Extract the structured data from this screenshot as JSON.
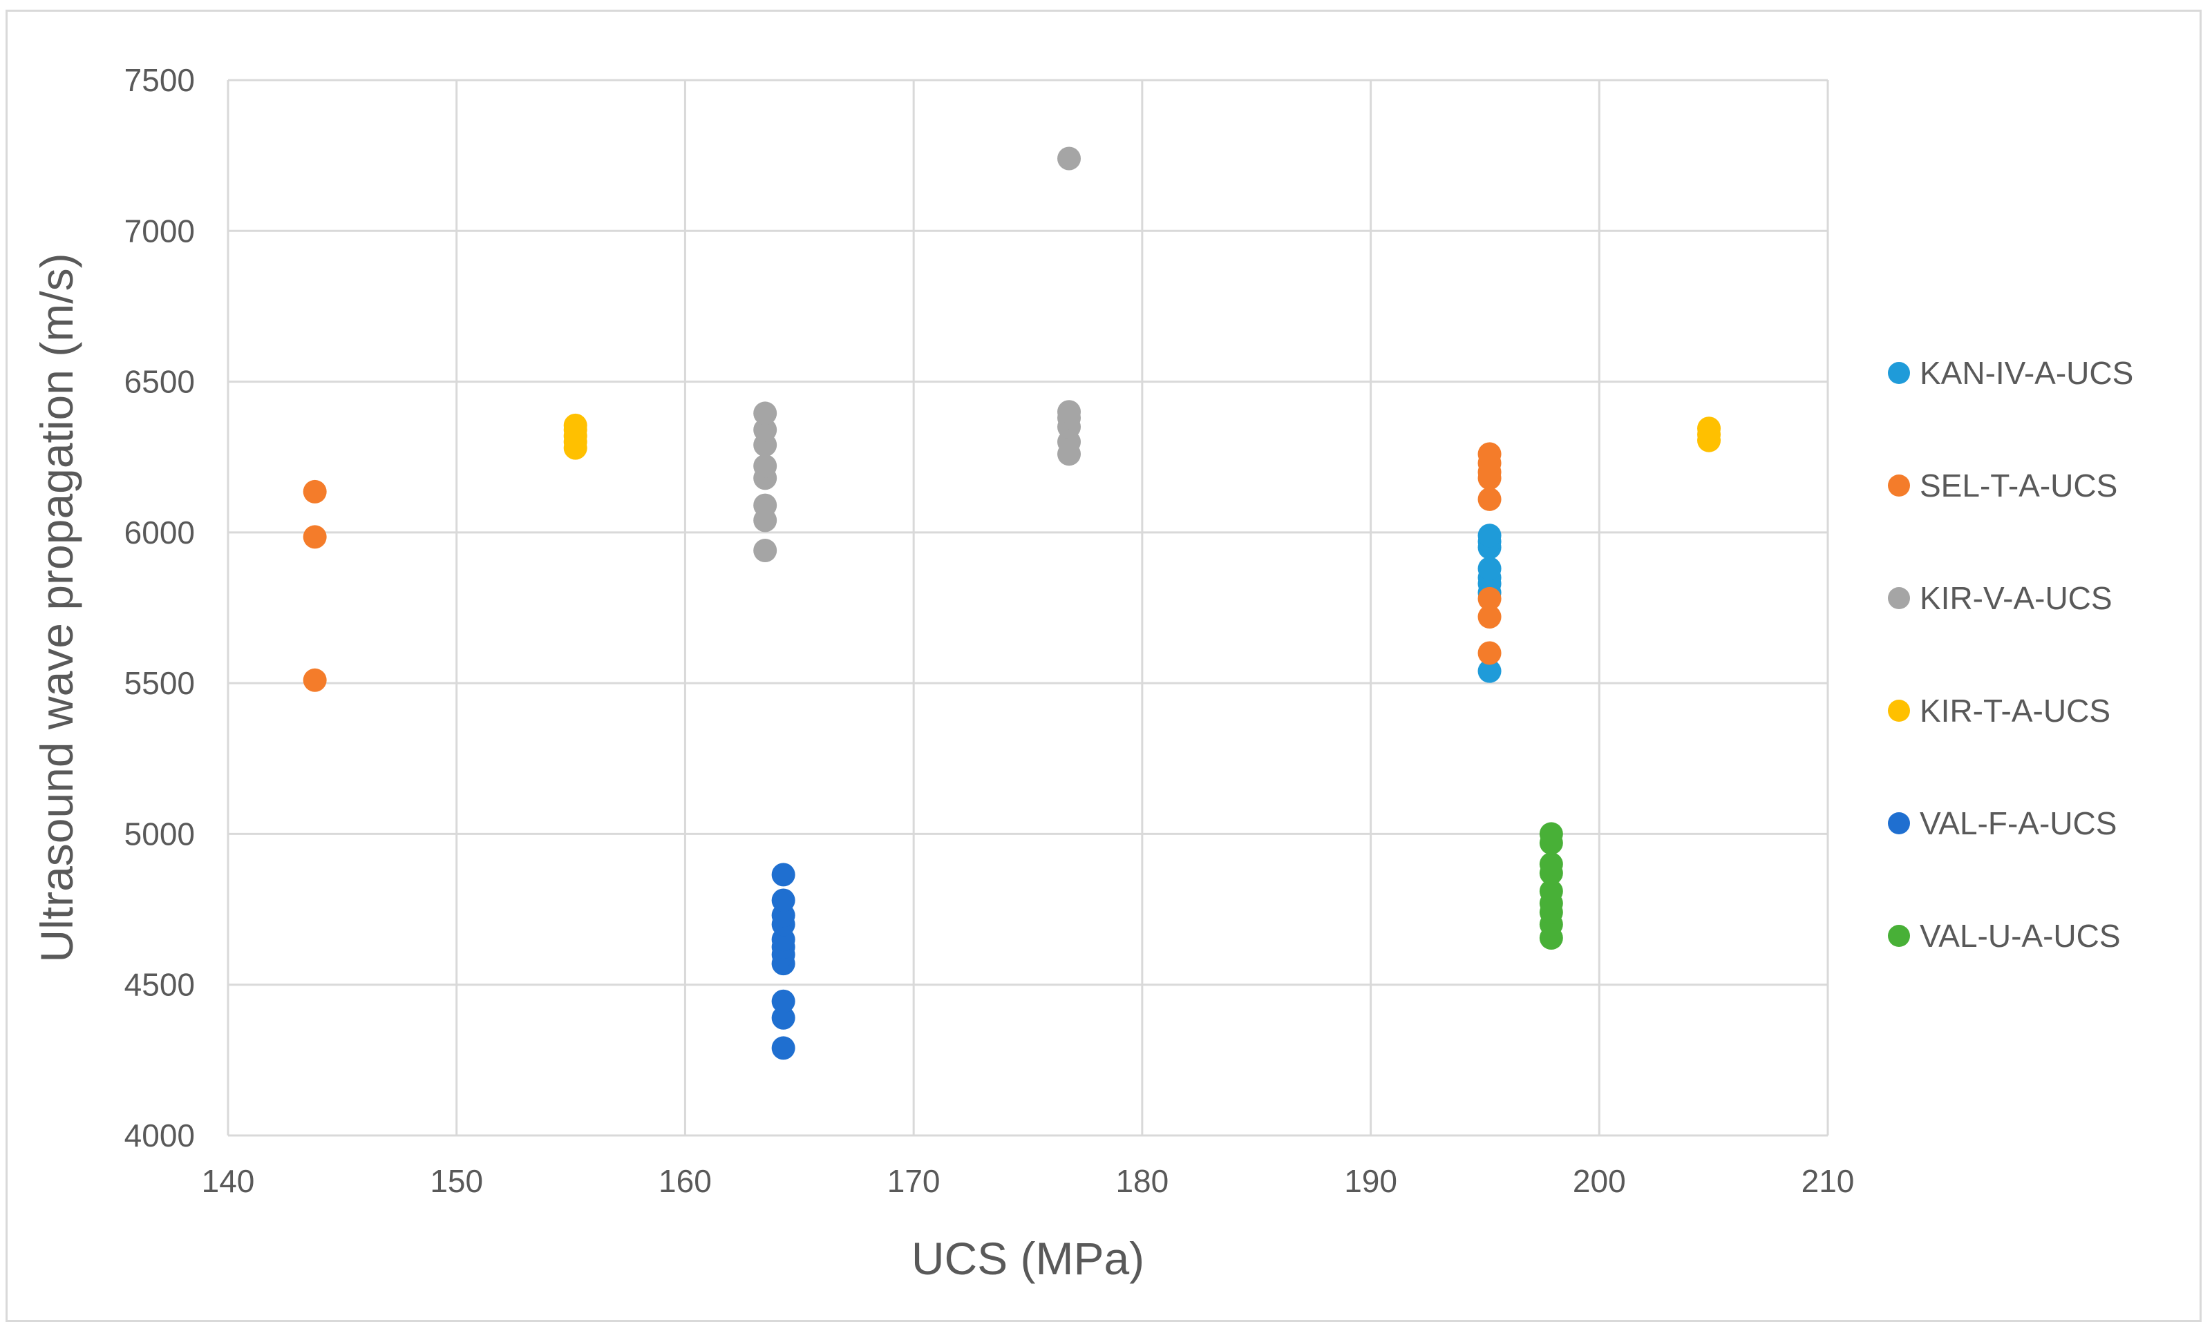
{
  "chart_data": {
    "type": "scatter",
    "title": "",
    "xlabel": "UCS (MPa)",
    "ylabel": "Ultrasound wave propagation (m/s)",
    "xlim": [
      140,
      210
    ],
    "ylim": [
      4000,
      7500
    ],
    "x_ticks": [
      "140",
      "150",
      "160",
      "170",
      "180",
      "190",
      "200",
      "210"
    ],
    "y_ticks": [
      "4000",
      "4500",
      "5000",
      "5500",
      "6000",
      "6500",
      "7000",
      "7500"
    ],
    "grid": true,
    "legend_position": "right",
    "series": [
      {
        "name": "KAN-IV-A-UCS",
        "color": "#1f9bd9",
        "points": [
          [
            195.2,
            5540
          ],
          [
            195.2,
            5800
          ],
          [
            195.2,
            5830
          ],
          [
            195.2,
            5850
          ],
          [
            195.2,
            5880
          ],
          [
            195.2,
            5950
          ],
          [
            195.2,
            5970
          ],
          [
            195.2,
            5990
          ]
        ]
      },
      {
        "name": "SEL-T-A-UCS",
        "color": "#f47c2a",
        "points": [
          [
            143.8,
            5510
          ],
          [
            143.8,
            5985
          ],
          [
            143.8,
            6135
          ],
          [
            195.2,
            5600
          ],
          [
            195.2,
            5720
          ],
          [
            195.2,
            5780
          ],
          [
            195.2,
            6110
          ],
          [
            195.2,
            6180
          ],
          [
            195.2,
            6200
          ],
          [
            195.2,
            6230
          ],
          [
            195.2,
            6260
          ]
        ]
      },
      {
        "name": "KIR-V-A-UCS",
        "color": "#a5a5a5",
        "points": [
          [
            163.5,
            5940
          ],
          [
            163.5,
            6040
          ],
          [
            163.5,
            6090
          ],
          [
            163.5,
            6180
          ],
          [
            163.5,
            6220
          ],
          [
            163.5,
            6290
          ],
          [
            163.5,
            6340
          ],
          [
            163.5,
            6395
          ],
          [
            176.8,
            6260
          ],
          [
            176.8,
            6300
          ],
          [
            176.8,
            6350
          ],
          [
            176.8,
            6380
          ],
          [
            176.8,
            6400
          ],
          [
            176.8,
            7240
          ]
        ]
      },
      {
        "name": "KIR-T-A-UCS",
        "color": "#ffc000",
        "points": [
          [
            155.2,
            6280
          ],
          [
            155.2,
            6300
          ],
          [
            155.2,
            6320
          ],
          [
            155.2,
            6340
          ],
          [
            155.2,
            6355
          ],
          [
            204.8,
            6305
          ],
          [
            204.8,
            6325
          ],
          [
            204.8,
            6345
          ]
        ]
      },
      {
        "name": "VAL-F-A-UCS",
        "color": "#1f6fd0",
        "points": [
          [
            164.3,
            4290
          ],
          [
            164.3,
            4390
          ],
          [
            164.3,
            4445
          ],
          [
            164.3,
            4570
          ],
          [
            164.3,
            4600
          ],
          [
            164.3,
            4625
          ],
          [
            164.3,
            4650
          ],
          [
            164.3,
            4700
          ],
          [
            164.3,
            4730
          ],
          [
            164.3,
            4780
          ],
          [
            164.3,
            4865
          ]
        ]
      },
      {
        "name": "VAL-U-A-UCS",
        "color": "#48b037",
        "points": [
          [
            197.9,
            4655
          ],
          [
            197.9,
            4700
          ],
          [
            197.9,
            4740
          ],
          [
            197.9,
            4770
          ],
          [
            197.9,
            4810
          ],
          [
            197.9,
            4870
          ],
          [
            197.9,
            4900
          ],
          [
            197.9,
            4970
          ],
          [
            197.9,
            5000
          ]
        ]
      }
    ]
  }
}
